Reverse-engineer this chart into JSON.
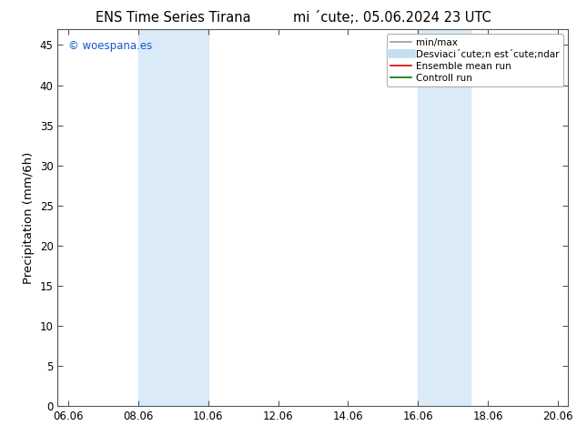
{
  "title_left": "ENS Time Series Tirana",
  "title_right": "mi ´cute;. 05.06.2024 23 UTC",
  "ylabel": "Precipitation (mm/6h)",
  "ylim": [
    0,
    47
  ],
  "yticks": [
    0,
    5,
    10,
    15,
    20,
    25,
    30,
    35,
    40,
    45
  ],
  "xtick_labels": [
    "06.06",
    "08.06",
    "10.06",
    "12.06",
    "14.06",
    "16.06",
    "18.06",
    "20.06"
  ],
  "xtick_positions": [
    0,
    2,
    4,
    6,
    8,
    10,
    12,
    14
  ],
  "xlim": [
    -0.3,
    14.3
  ],
  "background_color": "#ffffff",
  "shaded_regions": [
    {
      "x_start": 2.0,
      "x_end": 4.0,
      "color": "#daeaf7"
    },
    {
      "x_start": 10.0,
      "x_end": 11.5,
      "color": "#daeaf7"
    }
  ],
  "watermark_text": "© woespana.es",
  "watermark_color": "#1155cc",
  "legend_items": [
    {
      "label": "min/max",
      "color": "#999999",
      "lw": 1.2
    },
    {
      "label": "Desviaci´cute;n est´cute;ndar",
      "color": "#c5dff0",
      "lw": 7
    },
    {
      "label": "Ensemble mean run",
      "color": "#dd0000",
      "lw": 1.2
    },
    {
      "label": "Controll run",
      "color": "#007700",
      "lw": 1.2
    }
  ],
  "tick_fontsize": 8.5,
  "label_fontsize": 9.5,
  "title_fontsize": 10.5
}
